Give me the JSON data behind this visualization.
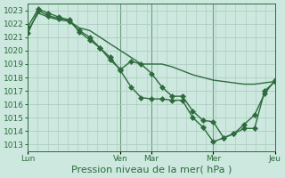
{
  "bg_color": "#cde8df",
  "grid_color": "#a8c8bc",
  "line_color": "#2d6b3c",
  "marker_color": "#2d6b3c",
  "markersize": 3,
  "linewidth": 1.0,
  "ylim": [
    1012.5,
    1023.5
  ],
  "yticks": [
    1013,
    1014,
    1015,
    1016,
    1017,
    1018,
    1019,
    1020,
    1021,
    1022,
    1023
  ],
  "xlabel": "Pression niveau de la mer( hPa )",
  "xlabel_fontsize": 8,
  "tick_fontsize": 6.5,
  "day_labels": [
    "Lun",
    "Ven",
    "Mar",
    "Mer",
    "Jeu"
  ],
  "day_positions": [
    0.0,
    0.375,
    0.5,
    0.75,
    1.0
  ],
  "vline_positions": [
    0.0,
    0.375,
    0.5,
    0.75,
    1.0
  ],
  "series1_x": [
    0.0,
    0.042,
    0.083,
    0.125,
    0.167,
    0.208,
    0.25,
    0.292,
    0.333,
    0.375,
    0.417,
    0.458,
    0.5,
    0.542,
    0.583,
    0.625,
    0.667,
    0.708,
    0.75,
    0.792,
    0.833,
    0.875,
    0.917,
    0.958,
    1.0
  ],
  "series1_y": [
    1021.5,
    1022.8,
    1022.5,
    1022.3,
    1022.2,
    1021.7,
    1021.5,
    1021.0,
    1020.5,
    1020.0,
    1019.5,
    1019.0,
    1019.0,
    1019.0,
    1018.8,
    1018.5,
    1018.2,
    1018.0,
    1017.8,
    1017.7,
    1017.6,
    1017.5,
    1017.5,
    1017.6,
    1017.7
  ],
  "series1_markers": false,
  "series2_x": [
    0.0,
    0.042,
    0.083,
    0.125,
    0.167,
    0.208,
    0.25,
    0.292,
    0.333,
    0.375,
    0.417,
    0.458,
    0.5,
    0.542,
    0.583,
    0.625,
    0.667,
    0.708,
    0.75,
    0.792,
    0.833,
    0.875,
    0.917,
    0.958,
    1.0
  ],
  "series2_y": [
    1021.8,
    1023.1,
    1022.8,
    1022.5,
    1022.3,
    1021.4,
    1020.8,
    1020.2,
    1019.3,
    1018.6,
    1019.2,
    1019.0,
    1018.3,
    1017.3,
    1016.6,
    1016.6,
    1015.5,
    1014.8,
    1014.7,
    1013.5,
    1013.8,
    1014.5,
    1015.2,
    1016.8,
    1017.8
  ],
  "series2_markers": true,
  "series3_x": [
    0.0,
    0.042,
    0.083,
    0.125,
    0.167,
    0.208,
    0.25,
    0.292,
    0.333,
    0.375,
    0.417,
    0.458,
    0.5,
    0.542,
    0.583,
    0.625,
    0.667,
    0.708,
    0.75,
    0.792,
    0.833,
    0.875,
    0.917,
    0.958,
    1.0
  ],
  "series3_y": [
    1021.3,
    1023.0,
    1022.6,
    1022.4,
    1022.2,
    1021.5,
    1021.0,
    1020.2,
    1019.5,
    1018.5,
    1017.3,
    1016.5,
    1016.4,
    1016.4,
    1016.3,
    1016.3,
    1015.0,
    1014.3,
    1013.2,
    1013.5,
    1013.8,
    1014.2,
    1014.2,
    1017.0,
    1017.7
  ],
  "series3_markers": true
}
